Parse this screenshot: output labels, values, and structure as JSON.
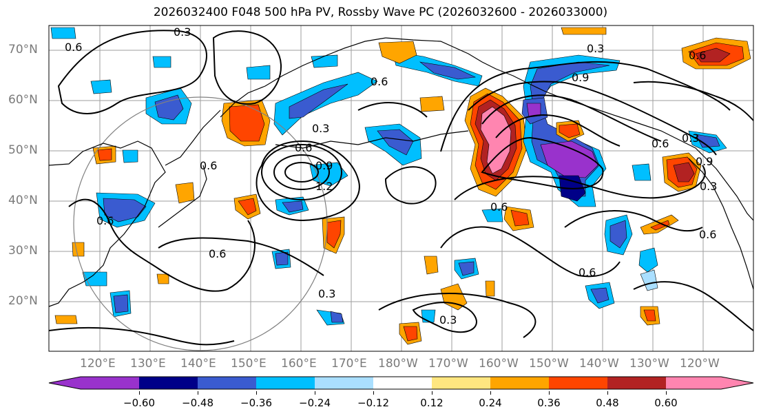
{
  "title": "2026032400 F048 500 hPa PV, Rossby Wave PC (2026032600 - 2026033000)",
  "lat_labels": [
    "70°N",
    "60°N",
    "50°N",
    "40°N",
    "30°N",
    "20°N"
  ],
  "lon_labels": [
    "120°E",
    "130°E",
    "140°E",
    "150°E",
    "160°E",
    "170°E",
    "180°W",
    "170°W",
    "160°W",
    "150°W",
    "140°W",
    "130°W",
    "120°W"
  ],
  "colorbar": {
    "ticks": [
      "−0.60",
      "−0.48",
      "−0.36",
      "−0.24",
      "−0.12",
      "0.12",
      "0.24",
      "0.36",
      "0.48",
      "0.60"
    ],
    "colors": [
      "#9932cc",
      "#000088",
      "#3a5bd0",
      "#00bfff",
      "#aadfff",
      "#ffffff",
      "#ffe680",
      "#ffa500",
      "#ff4500",
      "#b22222",
      "#ff85b0"
    ]
  },
  "contour_labels": [
    "0.3",
    "0.6",
    "0.9",
    "1.2",
    "0.3",
    "0.6",
    "0.6",
    "0.6",
    "0.3",
    "0.6",
    "0.9",
    "0.3",
    "0.6",
    "0.6",
    "0.3",
    "0.3",
    "0.6",
    "0.9",
    "0.6",
    "0.3",
    "0.6",
    "0.6"
  ]
}
